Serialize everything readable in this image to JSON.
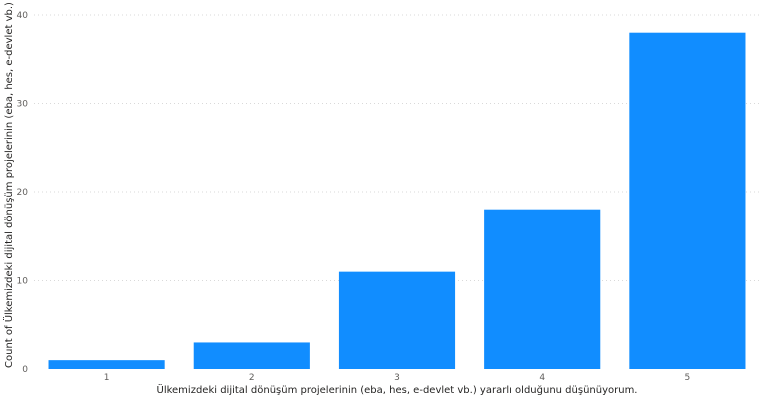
{
  "chart_data": {
    "type": "bar",
    "categories": [
      "1",
      "2",
      "3",
      "4",
      "5"
    ],
    "values": [
      1,
      3,
      11,
      18,
      38
    ],
    "xlabel": "Ülkemizdeki dijital dönüşüm projelerinin (eba, hes, e-devlet vb.) yararlı olduğunu düşünüyorum.",
    "ylabel": "Count of Ülkemizdeki dijital dönüşüm projelerinin (eba, hes, e-devlet vb.) yararlı ...",
    "ylim": [
      0,
      40
    ],
    "yticks": [
      0,
      10,
      20,
      30,
      40
    ],
    "grid": true,
    "bar_color": "#118dff"
  }
}
